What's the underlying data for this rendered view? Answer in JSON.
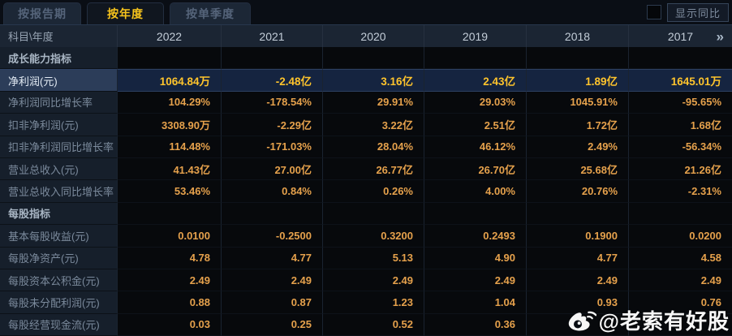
{
  "tabs": [
    {
      "label": "按报告期",
      "active": false
    },
    {
      "label": "按年度",
      "active": true
    },
    {
      "label": "按单季度",
      "active": false
    }
  ],
  "controls": {
    "show_yoy_label": "显示同比",
    "checkbox_checked": false
  },
  "table": {
    "corner_label": "科目\\年度",
    "years": [
      "2022",
      "2021",
      "2020",
      "2019",
      "2018",
      "2017"
    ],
    "more_icon": "»",
    "rows": [
      {
        "type": "section",
        "label": "成长能力指标",
        "highlight": false,
        "values": [
          "",
          "",
          "",
          "",
          "",
          ""
        ]
      },
      {
        "type": "data",
        "label": "净利润(元)",
        "highlight": true,
        "values": [
          "1064.84万",
          "-2.48亿",
          "3.16亿",
          "2.43亿",
          "1.89亿",
          "1645.01万"
        ]
      },
      {
        "type": "data",
        "label": "净利润同比增长率",
        "highlight": false,
        "values": [
          "104.29%",
          "-178.54%",
          "29.91%",
          "29.03%",
          "1045.91%",
          "-95.65%"
        ]
      },
      {
        "type": "data",
        "label": "扣非净利润(元)",
        "highlight": false,
        "values": [
          "3308.90万",
          "-2.29亿",
          "3.22亿",
          "2.51亿",
          "1.72亿",
          "1.68亿"
        ]
      },
      {
        "type": "data",
        "label": "扣非净利润同比增长率",
        "highlight": false,
        "values": [
          "114.48%",
          "-171.03%",
          "28.04%",
          "46.12%",
          "2.49%",
          "-56.34%"
        ]
      },
      {
        "type": "data",
        "label": "营业总收入(元)",
        "highlight": false,
        "values": [
          "41.43亿",
          "27.00亿",
          "26.77亿",
          "26.70亿",
          "25.68亿",
          "21.26亿"
        ]
      },
      {
        "type": "data",
        "label": "营业总收入同比增长率",
        "highlight": false,
        "values": [
          "53.46%",
          "0.84%",
          "0.26%",
          "4.00%",
          "20.76%",
          "-2.31%"
        ]
      },
      {
        "type": "section",
        "label": "每股指标",
        "highlight": false,
        "values": [
          "",
          "",
          "",
          "",
          "",
          ""
        ]
      },
      {
        "type": "data",
        "label": "基本每股收益(元)",
        "highlight": false,
        "values": [
          "0.0100",
          "-0.2500",
          "0.3200",
          "0.2493",
          "0.1900",
          "0.0200"
        ]
      },
      {
        "type": "data",
        "label": "每股净资产(元)",
        "highlight": false,
        "values": [
          "4.78",
          "4.77",
          "5.13",
          "4.90",
          "4.77",
          "4.58"
        ]
      },
      {
        "type": "data",
        "label": "每股资本公积金(元)",
        "highlight": false,
        "values": [
          "2.49",
          "2.49",
          "2.49",
          "2.49",
          "2.49",
          "2.49"
        ]
      },
      {
        "type": "data",
        "label": "每股未分配利润(元)",
        "highlight": false,
        "values": [
          "0.88",
          "0.87",
          "1.23",
          "1.04",
          "0.93",
          "0.76"
        ]
      },
      {
        "type": "data",
        "label": "每股经营现金流(元)",
        "highlight": false,
        "values": [
          "0.03",
          "0.25",
          "0.52",
          "0.36",
          "",
          ""
        ]
      }
    ]
  },
  "watermark": {
    "text": "@老索有好股",
    "icon": "weibo-icon"
  },
  "colors": {
    "accent_gold": "#f7c41c",
    "value_orange": "#e5a14c",
    "highlight_value_gold": "#ffc42c",
    "highlight_row_bg": "#152440",
    "header_bg": "#1b2533",
    "label_col_bg": "#161f2b"
  }
}
